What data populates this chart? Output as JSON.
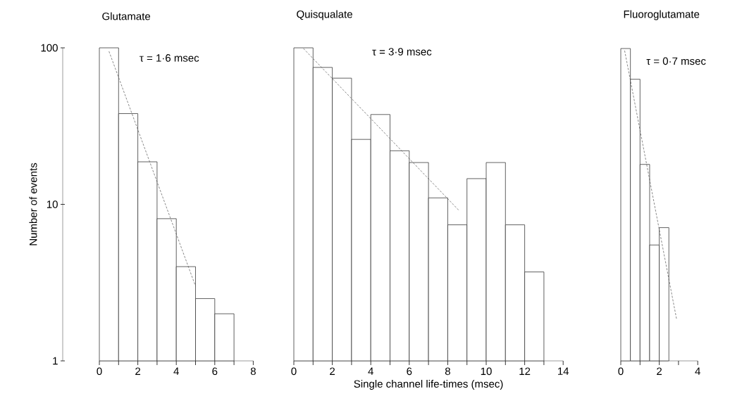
{
  "chart_data": [
    {
      "type": "histogram",
      "title": "Glutamate",
      "ylabel": "Number of events",
      "annotations": [
        "τ = 1·6 msec"
      ],
      "log": true,
      "color": "#3a3a3a",
      "bins": [
        0,
        1,
        2,
        3,
        4,
        5,
        6,
        7
      ],
      "values": [
        100,
        38,
        18.7,
        8.1,
        4.0,
        2.5,
        2.0
      ],
      "series": [
        {
          "type": "line",
          "x": [
            0.5,
            5.0
          ],
          "values": [
            95,
            3.0
          ],
          "color": "#555555",
          "line_style": "dashed"
        }
      ],
      "xlim": [
        0,
        8
      ],
      "xticks": [
        0,
        {
          "value": 1,
          "label": null
        },
        2,
        {
          "value": 3,
          "label": null
        },
        4,
        {
          "value": 5,
          "label": null
        },
        6,
        {
          "value": 7,
          "label": null
        },
        8
      ],
      "ylim": [
        1,
        100
      ],
      "yticks": [
        1,
        10,
        100
      ]
    },
    {
      "type": "histogram",
      "title": "Quisqualate",
      "xlabel": "Single channel life-times (msec)",
      "annotations": [
        "τ = 3·9 msec"
      ],
      "log": true,
      "color": "#3a3a3a",
      "tick_labels": "x",
      "bins": [
        0,
        1,
        2,
        3,
        4,
        5,
        6,
        7,
        8,
        9,
        10,
        11,
        12,
        13
      ],
      "values": [
        100,
        75,
        64,
        26,
        37.5,
        22,
        18.5,
        11,
        7.4,
        14.6,
        18.5,
        7.4,
        3.7
      ],
      "series": [
        {
          "type": "line",
          "x": [
            0.5,
            8.6
          ],
          "values": [
            99,
            9.1
          ],
          "color": "#555555",
          "line_style": "dashed"
        }
      ],
      "xlim": [
        0,
        14
      ],
      "xticks": [
        0,
        {
          "value": 1,
          "label": null
        },
        2,
        {
          "value": 3,
          "label": null
        },
        4,
        {
          "value": 5,
          "label": null
        },
        6,
        {
          "value": 7,
          "label": null
        },
        8,
        {
          "value": 9,
          "label": null
        },
        10,
        {
          "value": 11,
          "label": null
        },
        12,
        {
          "value": 13,
          "label": null
        },
        14
      ],
      "ylim": [
        1,
        100
      ],
      "yticks": [
        1,
        10,
        100
      ]
    },
    {
      "type": "histogram",
      "title": "Fluoroglutamate",
      "annotations": [
        "τ = 0·7 msec"
      ],
      "log": true,
      "color": "#3a3a3a",
      "tick_labels": "x",
      "bins": [
        0,
        0.5,
        1,
        1.5,
        2,
        2.5
      ],
      "values": [
        99,
        63,
        18,
        5.5,
        7.1
      ],
      "series": [
        {
          "type": "line",
          "x": [
            0.2,
            2.9
          ],
          "values": [
            96,
            1.85
          ],
          "color": "#555555",
          "line_style": "dashed"
        }
      ],
      "xlim": [
        0,
        4
      ],
      "xticks": [
        0,
        {
          "value": 1,
          "label": null
        },
        2,
        {
          "value": 3,
          "label": null
        },
        4
      ],
      "ylim": [
        1,
        100
      ],
      "yticks": [
        1,
        10,
        100
      ]
    }
  ]
}
